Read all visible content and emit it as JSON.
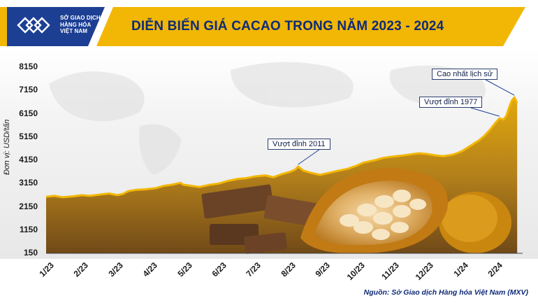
{
  "header": {
    "logo_lines": [
      "SỞ GIAO DỊCH",
      "HÀNG HÓA",
      "VIỆT NAM"
    ],
    "title": "DIỄN BIẾN GIÁ CACAO TRONG NĂM 2023 - 2024"
  },
  "footer": {
    "source": "Nguồn: Sở Giao dịch Hàng hóa Việt Nam (MXV)"
  },
  "colors": {
    "accent": "#f2b705",
    "title": "#0e2a78",
    "logo_blue": "#1c3f94",
    "line": "#f2b705"
  },
  "chart_data": {
    "type": "area",
    "title": "DIỄN BIẾN GIÁ CACAO TRONG NĂM 2023 - 2024",
    "ylabel": "Đơn vị: USD/tấn",
    "xlabel": "",
    "ylim": [
      150,
      8150
    ],
    "yticks": [
      150,
      1150,
      2150,
      3150,
      4150,
      5150,
      6150,
      7150,
      8150
    ],
    "xticks": [
      "1/23",
      "2/23",
      "3/23",
      "4/23",
      "5/23",
      "6/23",
      "7/23",
      "8/23",
      "9/23",
      "10/23",
      "11/23",
      "12/23",
      "1/24",
      "2/24"
    ],
    "grid": false,
    "series": [
      {
        "values": [
          [
            0,
            2580
          ],
          [
            0.3,
            2620
          ],
          [
            0.6,
            2560
          ],
          [
            1.0,
            2600
          ],
          [
            1.3,
            2650
          ],
          [
            1.6,
            2620
          ],
          [
            2.0,
            2680
          ],
          [
            2.3,
            2720
          ],
          [
            2.6,
            2650
          ],
          [
            2.8,
            2700
          ],
          [
            3.0,
            2820
          ],
          [
            3.3,
            2880
          ],
          [
            3.6,
            2900
          ],
          [
            4.0,
            2950
          ],
          [
            4.3,
            3050
          ],
          [
            4.6,
            3100
          ],
          [
            4.9,
            3180
          ],
          [
            5.0,
            3100
          ],
          [
            5.3,
            3050
          ],
          [
            5.6,
            3000
          ],
          [
            6.0,
            3100
          ],
          [
            6.3,
            3150
          ],
          [
            6.6,
            3250
          ],
          [
            7.0,
            3350
          ],
          [
            7.3,
            3380
          ],
          [
            7.6,
            3450
          ],
          [
            8.0,
            3500
          ],
          [
            8.3,
            3420
          ],
          [
            8.6,
            3550
          ],
          [
            8.9,
            3650
          ],
          [
            9.1,
            3750
          ],
          [
            9.2,
            3880
          ],
          [
            9.4,
            3700
          ],
          [
            9.7,
            3600
          ],
          [
            10.0,
            3520
          ],
          [
            10.3,
            3600
          ],
          [
            10.6,
            3680
          ],
          [
            11.0,
            3780
          ],
          [
            11.3,
            3900
          ],
          [
            11.6,
            4050
          ],
          [
            12.0,
            4150
          ],
          [
            12.3,
            4250
          ],
          [
            12.6,
            4300
          ],
          [
            13.0,
            4350
          ],
          [
            13.3,
            4400
          ],
          [
            13.6,
            4450
          ],
          [
            13.9,
            4420
          ],
          [
            14.2,
            4360
          ],
          [
            14.5,
            4320
          ],
          [
            14.8,
            4380
          ],
          [
            15.0,
            4450
          ],
          [
            15.2,
            4550
          ],
          [
            15.4,
            4700
          ],
          [
            15.6,
            4850
          ],
          [
            15.8,
            5000
          ],
          [
            16.0,
            5200
          ],
          [
            16.2,
            5450
          ],
          [
            16.4,
            5750
          ],
          [
            16.55,
            5950
          ],
          [
            16.7,
            5900
          ],
          [
            16.8,
            6050
          ],
          [
            16.9,
            6400
          ],
          [
            17.0,
            6700
          ],
          [
            17.1,
            6850
          ],
          [
            17.2,
            6600
          ]
        ]
      }
    ],
    "annotations": [
      {
        "text": "Vượt đỉnh 2011",
        "x": 9.2,
        "y": 3880
      },
      {
        "text": "Vượt đỉnh 1977",
        "x": 16.55,
        "y": 5950
      },
      {
        "text": "Cao nhất lịch sử",
        "x": 17.1,
        "y": 6850
      }
    ]
  }
}
